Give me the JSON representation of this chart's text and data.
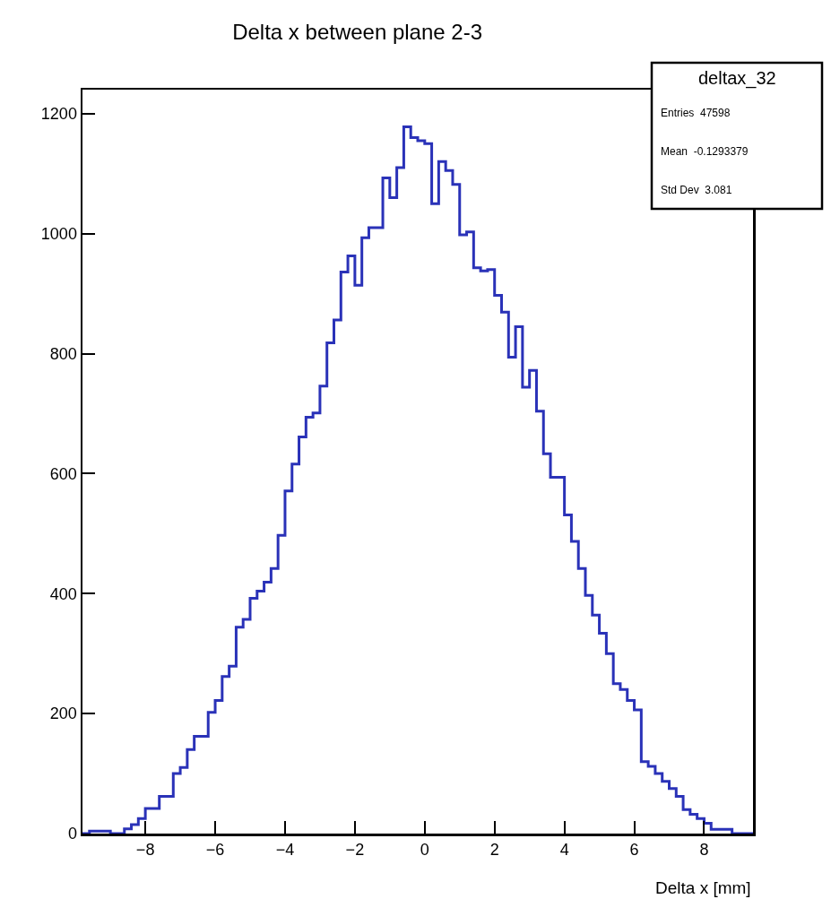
{
  "chart_data": {
    "type": "histogram",
    "title": "Delta x between plane 2-3",
    "xlabel": "Delta x [mm]",
    "annotations": [
      "deltax_32",
      "Entries  47598",
      "Mean  -0.1293379",
      "Std Dev  3.081"
    ],
    "color": "#2a32b8",
    "bins": [
      -9.8,
      -9.6,
      -9.4,
      -9.2,
      -9.0,
      -8.8,
      -8.6,
      -8.4,
      -8.2,
      -8.0,
      -7.8,
      -7.6,
      -7.4,
      -7.2,
      -7.0,
      -6.8,
      -6.6,
      -6.4,
      -6.2,
      -6.0,
      -5.8,
      -5.6,
      -5.4,
      -5.2,
      -5.0,
      -4.8,
      -4.6,
      -4.4,
      -4.2,
      -4.0,
      -3.8,
      -3.6,
      -3.4,
      -3.2,
      -3.0,
      -2.8,
      -2.6,
      -2.4,
      -2.2,
      -2.0,
      -1.8,
      -1.6,
      -1.4,
      -1.2,
      -1.0,
      -0.8,
      -0.6,
      -0.4,
      -0.2,
      0.0,
      0.2,
      0.4,
      0.6,
      0.8,
      1.0,
      1.2,
      1.4,
      1.6,
      1.8,
      2.0,
      2.2,
      2.4,
      2.6,
      2.8,
      3.0,
      3.2,
      3.4,
      3.6,
      3.8,
      4.0,
      4.2,
      4.4,
      4.6,
      4.8,
      5.0,
      5.2,
      5.4,
      5.6,
      5.8,
      6.0,
      6.2,
      6.4,
      6.6,
      6.8,
      7.0,
      7.2,
      7.4,
      7.6,
      7.8,
      8.0,
      8.2,
      8.4,
      8.6,
      8.8,
      9.0,
      9.2,
      9.4
    ],
    "values": [
      0,
      4,
      4,
      4,
      0,
      0,
      8,
      15,
      25,
      42,
      42,
      62,
      62,
      100,
      110,
      140,
      162,
      162,
      202,
      222,
      262,
      279,
      344,
      357,
      392,
      404,
      419,
      442,
      497,
      571,
      616,
      661,
      694,
      701,
      746,
      818,
      856,
      936,
      963,
      914,
      993,
      1010,
      1010,
      1093,
      1060,
      1110,
      1178,
      1160,
      1155,
      1150,
      1050,
      1120,
      1105,
      1082,
      998,
      1003,
      943,
      938,
      940,
      897,
      869,
      794,
      845,
      744,
      772,
      704,
      633,
      594,
      594,
      531,
      487,
      442,
      397,
      364,
      334,
      300,
      250,
      240,
      222,
      206,
      120,
      112,
      100,
      87,
      75,
      62,
      40,
      32,
      25,
      17,
      7,
      7,
      7,
      0,
      0,
      0
    ],
    "xlim": [
      -9.8,
      9.4
    ],
    "xticks": [
      -8,
      -6,
      -4,
      -2,
      0,
      2,
      4,
      6,
      8
    ],
    "ylim": [
      0,
      1240
    ],
    "yticks": [
      0,
      200,
      400,
      600,
      800,
      1000,
      1200
    ]
  }
}
